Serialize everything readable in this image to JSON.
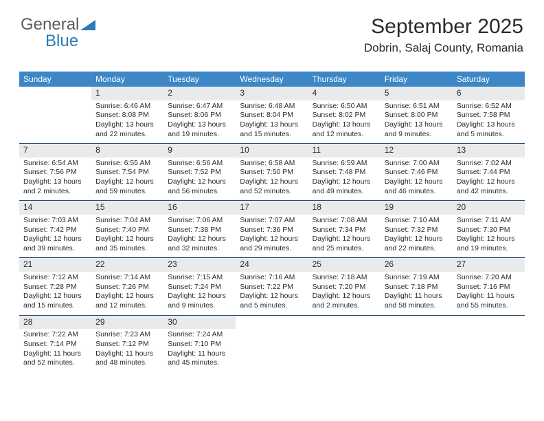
{
  "logo": {
    "word1": "General",
    "word2": "Blue"
  },
  "title": "September 2025",
  "location": "Dobrin, Salaj County, Romania",
  "header_color": "#3d87c7",
  "divider_color": "#2b4a6a",
  "shade_color": "#e9eaec",
  "text_color": "#2b2b2b",
  "logo_gray": "#5a5d60",
  "logo_blue": "#2a7ab8",
  "day_names": [
    "Sunday",
    "Monday",
    "Tuesday",
    "Wednesday",
    "Thursday",
    "Friday",
    "Saturday"
  ],
  "weeks": [
    [
      {
        "num": "",
        "lines": []
      },
      {
        "num": "1",
        "lines": [
          "Sunrise: 6:46 AM",
          "Sunset: 8:08 PM",
          "Daylight: 13 hours",
          "and 22 minutes."
        ]
      },
      {
        "num": "2",
        "lines": [
          "Sunrise: 6:47 AM",
          "Sunset: 8:06 PM",
          "Daylight: 13 hours",
          "and 19 minutes."
        ]
      },
      {
        "num": "3",
        "lines": [
          "Sunrise: 6:48 AM",
          "Sunset: 8:04 PM",
          "Daylight: 13 hours",
          "and 15 minutes."
        ]
      },
      {
        "num": "4",
        "lines": [
          "Sunrise: 6:50 AM",
          "Sunset: 8:02 PM",
          "Daylight: 13 hours",
          "and 12 minutes."
        ]
      },
      {
        "num": "5",
        "lines": [
          "Sunrise: 6:51 AM",
          "Sunset: 8:00 PM",
          "Daylight: 13 hours",
          "and 9 minutes."
        ]
      },
      {
        "num": "6",
        "lines": [
          "Sunrise: 6:52 AM",
          "Sunset: 7:58 PM",
          "Daylight: 13 hours",
          "and 5 minutes."
        ]
      }
    ],
    [
      {
        "num": "7",
        "lines": [
          "Sunrise: 6:54 AM",
          "Sunset: 7:56 PM",
          "Daylight: 13 hours",
          "and 2 minutes."
        ]
      },
      {
        "num": "8",
        "lines": [
          "Sunrise: 6:55 AM",
          "Sunset: 7:54 PM",
          "Daylight: 12 hours",
          "and 59 minutes."
        ]
      },
      {
        "num": "9",
        "lines": [
          "Sunrise: 6:56 AM",
          "Sunset: 7:52 PM",
          "Daylight: 12 hours",
          "and 56 minutes."
        ]
      },
      {
        "num": "10",
        "lines": [
          "Sunrise: 6:58 AM",
          "Sunset: 7:50 PM",
          "Daylight: 12 hours",
          "and 52 minutes."
        ]
      },
      {
        "num": "11",
        "lines": [
          "Sunrise: 6:59 AM",
          "Sunset: 7:48 PM",
          "Daylight: 12 hours",
          "and 49 minutes."
        ]
      },
      {
        "num": "12",
        "lines": [
          "Sunrise: 7:00 AM",
          "Sunset: 7:46 PM",
          "Daylight: 12 hours",
          "and 46 minutes."
        ]
      },
      {
        "num": "13",
        "lines": [
          "Sunrise: 7:02 AM",
          "Sunset: 7:44 PM",
          "Daylight: 12 hours",
          "and 42 minutes."
        ]
      }
    ],
    [
      {
        "num": "14",
        "lines": [
          "Sunrise: 7:03 AM",
          "Sunset: 7:42 PM",
          "Daylight: 12 hours",
          "and 39 minutes."
        ]
      },
      {
        "num": "15",
        "lines": [
          "Sunrise: 7:04 AM",
          "Sunset: 7:40 PM",
          "Daylight: 12 hours",
          "and 35 minutes."
        ]
      },
      {
        "num": "16",
        "lines": [
          "Sunrise: 7:06 AM",
          "Sunset: 7:38 PM",
          "Daylight: 12 hours",
          "and 32 minutes."
        ]
      },
      {
        "num": "17",
        "lines": [
          "Sunrise: 7:07 AM",
          "Sunset: 7:36 PM",
          "Daylight: 12 hours",
          "and 29 minutes."
        ]
      },
      {
        "num": "18",
        "lines": [
          "Sunrise: 7:08 AM",
          "Sunset: 7:34 PM",
          "Daylight: 12 hours",
          "and 25 minutes."
        ]
      },
      {
        "num": "19",
        "lines": [
          "Sunrise: 7:10 AM",
          "Sunset: 7:32 PM",
          "Daylight: 12 hours",
          "and 22 minutes."
        ]
      },
      {
        "num": "20",
        "lines": [
          "Sunrise: 7:11 AM",
          "Sunset: 7:30 PM",
          "Daylight: 12 hours",
          "and 19 minutes."
        ]
      }
    ],
    [
      {
        "num": "21",
        "lines": [
          "Sunrise: 7:12 AM",
          "Sunset: 7:28 PM",
          "Daylight: 12 hours",
          "and 15 minutes."
        ]
      },
      {
        "num": "22",
        "lines": [
          "Sunrise: 7:14 AM",
          "Sunset: 7:26 PM",
          "Daylight: 12 hours",
          "and 12 minutes."
        ]
      },
      {
        "num": "23",
        "lines": [
          "Sunrise: 7:15 AM",
          "Sunset: 7:24 PM",
          "Daylight: 12 hours",
          "and 9 minutes."
        ]
      },
      {
        "num": "24",
        "lines": [
          "Sunrise: 7:16 AM",
          "Sunset: 7:22 PM",
          "Daylight: 12 hours",
          "and 5 minutes."
        ]
      },
      {
        "num": "25",
        "lines": [
          "Sunrise: 7:18 AM",
          "Sunset: 7:20 PM",
          "Daylight: 12 hours",
          "and 2 minutes."
        ]
      },
      {
        "num": "26",
        "lines": [
          "Sunrise: 7:19 AM",
          "Sunset: 7:18 PM",
          "Daylight: 11 hours",
          "and 58 minutes."
        ]
      },
      {
        "num": "27",
        "lines": [
          "Sunrise: 7:20 AM",
          "Sunset: 7:16 PM",
          "Daylight: 11 hours",
          "and 55 minutes."
        ]
      }
    ],
    [
      {
        "num": "28",
        "lines": [
          "Sunrise: 7:22 AM",
          "Sunset: 7:14 PM",
          "Daylight: 11 hours",
          "and 52 minutes."
        ]
      },
      {
        "num": "29",
        "lines": [
          "Sunrise: 7:23 AM",
          "Sunset: 7:12 PM",
          "Daylight: 11 hours",
          "and 48 minutes."
        ]
      },
      {
        "num": "30",
        "lines": [
          "Sunrise: 7:24 AM",
          "Sunset: 7:10 PM",
          "Daylight: 11 hours",
          "and 45 minutes."
        ]
      },
      {
        "num": "",
        "lines": []
      },
      {
        "num": "",
        "lines": []
      },
      {
        "num": "",
        "lines": []
      },
      {
        "num": "",
        "lines": []
      }
    ]
  ]
}
